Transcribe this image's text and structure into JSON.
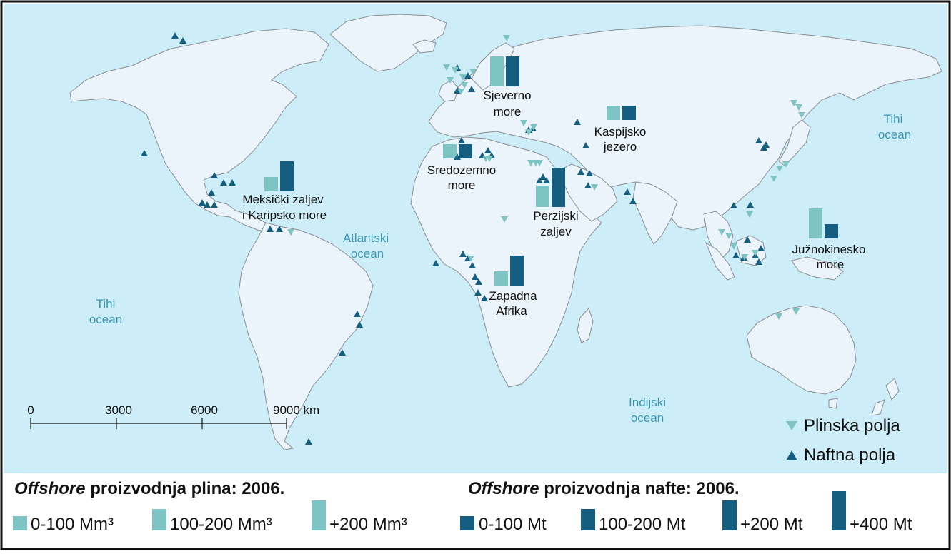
{
  "colors": {
    "ocean": "#cdeef8",
    "land": "#eaf4fa",
    "border": "#8a8f93",
    "gas": "#7fc4c4",
    "oil": "#165e80",
    "ocean_text": "#3a97b3",
    "frame": "#111111"
  },
  "ocean_labels": {
    "pacific_west": [
      "Tihi",
      "ocean"
    ],
    "pacific_east": [
      "Tihi",
      "ocean"
    ],
    "atlantic": [
      "Atlantski",
      "ocean"
    ],
    "indian": [
      "Indijski",
      "ocean"
    ]
  },
  "regions": {
    "north_sea": {
      "label_lines": [
        "Sjeverno",
        "more"
      ],
      "gas_class": "+200 Mm³",
      "oil_class": "+200 Mt"
    },
    "caspian": {
      "label_lines": [
        "Kaspijsko",
        "jezero"
      ],
      "gas_class": "0-100 Mm³",
      "oil_class": "0-100 Mt"
    },
    "mediterranean": {
      "label_lines": [
        "Sredozemno",
        "more"
      ],
      "gas_class": "0-100 Mm³",
      "oil_class": "0-100 Mt"
    },
    "gulf_mexico": {
      "label_lines": [
        "Meksički zaljev",
        "i Karipsko more"
      ],
      "gas_class": "0-100 Mm³",
      "oil_class": "+200 Mt"
    },
    "persian_gulf": {
      "label_lines": [
        "Perzijski",
        "zaljev"
      ],
      "gas_class": "100-200 Mm³",
      "oil_class": "+400 Mt"
    },
    "west_africa": {
      "label_lines": [
        "Zapadna",
        "Afrika"
      ],
      "gas_class": "0-100 Mm³",
      "oil_class": "+200 Mt"
    },
    "south_china_sea": {
      "label_lines": [
        "Južnokinesko",
        "more"
      ],
      "gas_class": "+200 Mm³",
      "oil_class": "0-100 Mt"
    }
  },
  "scale_bar": {
    "ticks": [
      "0",
      "3000",
      "6000",
      "9000 km"
    ]
  },
  "symbol_legend": {
    "gas_fields": "Plinska polja",
    "oil_fields": "Naftna polja"
  },
  "gas_legend": {
    "title_italic": "Offshore",
    "title_rest": " proizvodnja plina: 2006.",
    "classes": [
      "0-100 Mm³",
      "100-200 Mm³",
      "+200 Mm³"
    ]
  },
  "oil_legend": {
    "title_italic": "Offshore",
    "title_rest": " proizvodnja nafte: 2006.",
    "classes": [
      "0-100 Mt",
      "100-200 Mt",
      "+200 Mt",
      "+400 Mt"
    ]
  }
}
